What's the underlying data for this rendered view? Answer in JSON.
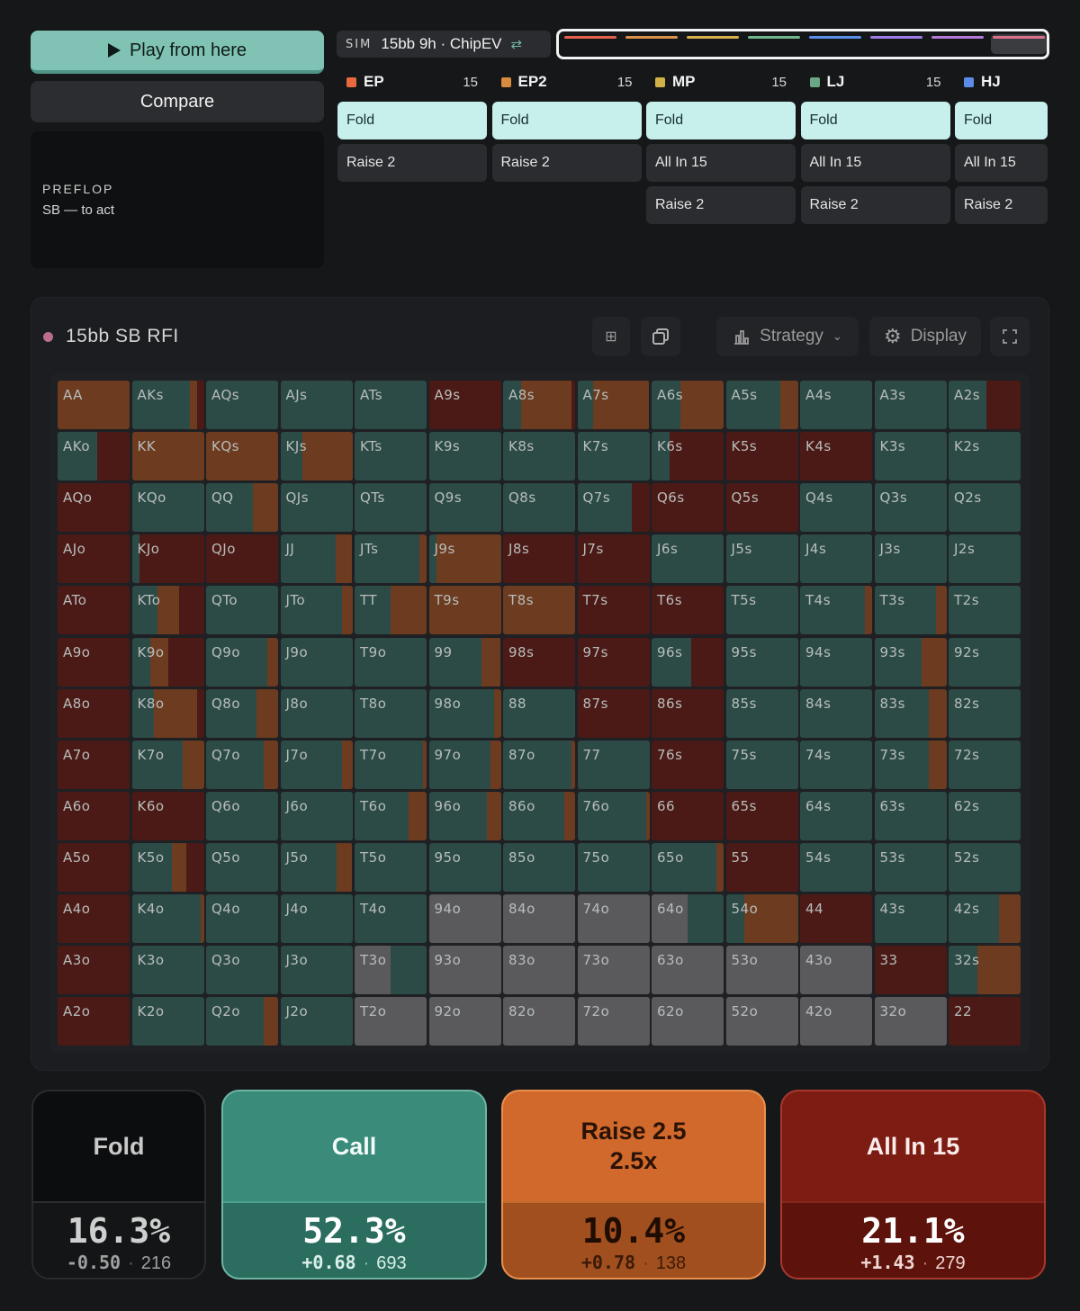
{
  "left": {
    "play_label": "Play from here",
    "compare_label": "Compare",
    "street": "PREFLOP",
    "to_act": "SB — to act"
  },
  "sim": {
    "tag": "SIM",
    "label": "15bb 9h · ChipEV",
    "swap_icon": "swap-icon"
  },
  "scrubber": {
    "colors": [
      "#e4614d",
      "#d9914b",
      "#d6b04c",
      "#6fb58d",
      "#5a8ee8",
      "#9d7be6",
      "#b47ad8",
      "#d9708c"
    ]
  },
  "positions": [
    {
      "name": "EP",
      "stack": "15",
      "color": "#e8683f",
      "actions": [
        "Fold",
        "Raise 2"
      ],
      "selected": 0
    },
    {
      "name": "EP2",
      "stack": "15",
      "color": "#d98b3e",
      "actions": [
        "Fold",
        "Raise 2"
      ],
      "selected": 0
    },
    {
      "name": "MP",
      "stack": "15",
      "color": "#d3b047",
      "actions": [
        "Fold",
        "All In 15",
        "Raise 2"
      ],
      "selected": 0
    },
    {
      "name": "LJ",
      "stack": "15",
      "color": "#6aa787",
      "actions": [
        "Fold",
        "All In 15",
        "Raise 2"
      ],
      "selected": 0
    },
    {
      "name": "HJ",
      "stack": "",
      "color": "#5d8ce8",
      "actions": [
        "Fold",
        "All In 15",
        "Raise 2"
      ],
      "selected": 0
    }
  ],
  "panel": {
    "title": "15bb SB RFI",
    "strategy_label": "Strategy",
    "display_label": "Display"
  },
  "colors": {
    "fold": "#5a5a5c",
    "call": "#2c4b47",
    "raise": "#6c3b20",
    "allin": "#4b1a16"
  },
  "hands": [
    [
      "AA",
      "AKs",
      "AQs",
      "AJs",
      "ATs",
      "A9s",
      "A8s",
      "A7s",
      "A6s",
      "A5s",
      "A4s",
      "A3s",
      "A2s"
    ],
    [
      "AKo",
      "KK",
      "KQs",
      "KJs",
      "KTs",
      "K9s",
      "K8s",
      "K7s",
      "K6s",
      "K5s",
      "K4s",
      "K3s",
      "K2s"
    ],
    [
      "AQo",
      "KQo",
      "QQ",
      "QJs",
      "QTs",
      "Q9s",
      "Q8s",
      "Q7s",
      "Q6s",
      "Q5s",
      "Q4s",
      "Q3s",
      "Q2s"
    ],
    [
      "AJo",
      "KJo",
      "QJo",
      "JJ",
      "JTs",
      "J9s",
      "J8s",
      "J7s",
      "J6s",
      "J5s",
      "J4s",
      "J3s",
      "J2s"
    ],
    [
      "ATo",
      "KTo",
      "QTo",
      "JTo",
      "TT",
      "T9s",
      "T8s",
      "T7s",
      "T6s",
      "T5s",
      "T4s",
      "T3s",
      "T2s"
    ],
    [
      "A9o",
      "K9o",
      "Q9o",
      "J9o",
      "T9o",
      "99",
      "98s",
      "97s",
      "96s",
      "95s",
      "94s",
      "93s",
      "92s"
    ],
    [
      "A8o",
      "K8o",
      "Q8o",
      "J8o",
      "T8o",
      "98o",
      "88",
      "87s",
      "86s",
      "85s",
      "84s",
      "83s",
      "82s"
    ],
    [
      "A7o",
      "K7o",
      "Q7o",
      "J7o",
      "T7o",
      "97o",
      "87o",
      "77",
      "76s",
      "75s",
      "74s",
      "73s",
      "72s"
    ],
    [
      "A6o",
      "K6o",
      "Q6o",
      "J6o",
      "T6o",
      "96o",
      "86o",
      "76o",
      "66",
      "65s",
      "64s",
      "63s",
      "62s"
    ],
    [
      "A5o",
      "K5o",
      "Q5o",
      "J5o",
      "T5o",
      "95o",
      "85o",
      "75o",
      "65o",
      "55",
      "54s",
      "53s",
      "52s"
    ],
    [
      "A4o",
      "K4o",
      "Q4o",
      "J4o",
      "T4o",
      "94o",
      "84o",
      "74o",
      "64o",
      "54o",
      "44",
      "43s",
      "42s"
    ],
    [
      "A3o",
      "K3o",
      "Q3o",
      "J3o",
      "T3o",
      "93o",
      "83o",
      "73o",
      "63o",
      "53o",
      "43o",
      "33",
      "32s"
    ],
    [
      "A2o",
      "K2o",
      "Q2o",
      "J2o",
      "T2o",
      "92o",
      "82o",
      "72o",
      "62o",
      "52o",
      "42o",
      "32o",
      "22"
    ]
  ],
  "strategy": [
    [
      [
        0,
        0,
        100,
        0
      ],
      [
        0,
        80,
        10,
        10
      ],
      [
        0,
        100,
        0,
        0
      ],
      [
        0,
        100,
        0,
        0
      ],
      [
        0,
        100,
        0,
        0
      ],
      [
        0,
        0,
        0,
        100
      ],
      [
        0,
        25,
        70,
        5
      ],
      [
        0,
        22,
        78,
        0
      ],
      [
        0,
        40,
        60,
        0
      ],
      [
        0,
        75,
        25,
        0
      ],
      [
        0,
        100,
        0,
        0
      ],
      [
        0,
        100,
        0,
        0
      ],
      [
        0,
        52,
        0,
        48
      ]
    ],
    [
      [
        0,
        55,
        0,
        45
      ],
      [
        0,
        0,
        100,
        0
      ],
      [
        0,
        0,
        100,
        0
      ],
      [
        0,
        30,
        70,
        0
      ],
      [
        0,
        100,
        0,
        0
      ],
      [
        0,
        100,
        0,
        0
      ],
      [
        0,
        100,
        0,
        0
      ],
      [
        0,
        100,
        0,
        0
      ],
      [
        0,
        25,
        0,
        75
      ],
      [
        0,
        0,
        0,
        100
      ],
      [
        0,
        0,
        0,
        100
      ],
      [
        0,
        100,
        0,
        0
      ],
      [
        0,
        100,
        0,
        0
      ]
    ],
    [
      [
        0,
        0,
        0,
        100
      ],
      [
        0,
        100,
        0,
        0
      ],
      [
        0,
        65,
        35,
        0
      ],
      [
        0,
        100,
        0,
        0
      ],
      [
        0,
        100,
        0,
        0
      ],
      [
        0,
        100,
        0,
        0
      ],
      [
        0,
        100,
        0,
        0
      ],
      [
        0,
        75,
        0,
        25
      ],
      [
        0,
        0,
        0,
        100
      ],
      [
        0,
        0,
        0,
        100
      ],
      [
        0,
        100,
        0,
        0
      ],
      [
        0,
        100,
        0,
        0
      ],
      [
        0,
        100,
        0,
        0
      ]
    ],
    [
      [
        0,
        0,
        0,
        100
      ],
      [
        0,
        10,
        0,
        90
      ],
      [
        0,
        0,
        0,
        100
      ],
      [
        0,
        77,
        23,
        0
      ],
      [
        0,
        90,
        10,
        0
      ],
      [
        0,
        10,
        90,
        0
      ],
      [
        0,
        0,
        0,
        100
      ],
      [
        0,
        0,
        0,
        100
      ],
      [
        0,
        100,
        0,
        0
      ],
      [
        0,
        100,
        0,
        0
      ],
      [
        0,
        100,
        0,
        0
      ],
      [
        0,
        100,
        0,
        0
      ],
      [
        0,
        100,
        0,
        0
      ]
    ],
    [
      [
        0,
        0,
        0,
        100
      ],
      [
        0,
        35,
        30,
        35
      ],
      [
        0,
        100,
        0,
        0
      ],
      [
        0,
        85,
        15,
        0
      ],
      [
        0,
        50,
        50,
        0
      ],
      [
        0,
        0,
        100,
        0
      ],
      [
        0,
        0,
        100,
        0
      ],
      [
        0,
        0,
        0,
        100
      ],
      [
        0,
        0,
        0,
        100
      ],
      [
        0,
        100,
        0,
        0
      ],
      [
        0,
        90,
        10,
        0
      ],
      [
        0,
        85,
        15,
        0
      ],
      [
        0,
        100,
        0,
        0
      ]
    ],
    [
      [
        0,
        0,
        0,
        100
      ],
      [
        0,
        25,
        25,
        50
      ],
      [
        0,
        85,
        15,
        0
      ],
      [
        0,
        100,
        0,
        0
      ],
      [
        0,
        100,
        0,
        0
      ],
      [
        0,
        73,
        27,
        0
      ],
      [
        0,
        0,
        0,
        100
      ],
      [
        0,
        0,
        0,
        100
      ],
      [
        0,
        55,
        0,
        45
      ],
      [
        0,
        100,
        0,
        0
      ],
      [
        0,
        100,
        0,
        0
      ],
      [
        0,
        65,
        35,
        0
      ],
      [
        0,
        100,
        0,
        0
      ]
    ],
    [
      [
        0,
        0,
        0,
        100
      ],
      [
        0,
        30,
        60,
        10
      ],
      [
        0,
        70,
        30,
        0
      ],
      [
        0,
        100,
        0,
        0
      ],
      [
        0,
        100,
        0,
        0
      ],
      [
        0,
        90,
        10,
        0
      ],
      [
        0,
        100,
        0,
        0
      ],
      [
        0,
        0,
        0,
        100
      ],
      [
        0,
        0,
        0,
        100
      ],
      [
        0,
        100,
        0,
        0
      ],
      [
        0,
        100,
        0,
        0
      ],
      [
        0,
        75,
        25,
        0
      ],
      [
        0,
        100,
        0,
        0
      ]
    ],
    [
      [
        0,
        0,
        0,
        100
      ],
      [
        0,
        70,
        30,
        0
      ],
      [
        0,
        80,
        20,
        0
      ],
      [
        0,
        85,
        15,
        0
      ],
      [
        0,
        95,
        5,
        0
      ],
      [
        0,
        85,
        15,
        0
      ],
      [
        0,
        95,
        5,
        0
      ],
      [
        0,
        100,
        0,
        0
      ],
      [
        0,
        0,
        0,
        100
      ],
      [
        0,
        100,
        0,
        0
      ],
      [
        0,
        100,
        0,
        0
      ],
      [
        0,
        75,
        25,
        0
      ],
      [
        0,
        100,
        0,
        0
      ]
    ],
    [
      [
        0,
        0,
        0,
        100
      ],
      [
        0,
        0,
        0,
        100
      ],
      [
        0,
        100,
        0,
        0
      ],
      [
        0,
        100,
        0,
        0
      ],
      [
        0,
        75,
        25,
        0
      ],
      [
        0,
        80,
        20,
        0
      ],
      [
        0,
        85,
        15,
        0
      ],
      [
        0,
        95,
        5,
        0
      ],
      [
        0,
        0,
        0,
        100
      ],
      [
        0,
        0,
        0,
        100
      ],
      [
        0,
        100,
        0,
        0
      ],
      [
        0,
        100,
        0,
        0
      ],
      [
        0,
        100,
        0,
        0
      ]
    ],
    [
      [
        0,
        0,
        0,
        100
      ],
      [
        0,
        55,
        20,
        25
      ],
      [
        0,
        100,
        0,
        0
      ],
      [
        0,
        78,
        22,
        0
      ],
      [
        0,
        100,
        0,
        0
      ],
      [
        0,
        100,
        0,
        0
      ],
      [
        0,
        100,
        0,
        0
      ],
      [
        0,
        100,
        0,
        0
      ],
      [
        0,
        90,
        10,
        0
      ],
      [
        0,
        0,
        0,
        100
      ],
      [
        0,
        100,
        0,
        0
      ],
      [
        0,
        100,
        0,
        0
      ],
      [
        0,
        100,
        0,
        0
      ]
    ],
    [
      [
        0,
        0,
        0,
        100
      ],
      [
        0,
        95,
        5,
        0
      ],
      [
        0,
        100,
        0,
        0
      ],
      [
        0,
        100,
        0,
        0
      ],
      [
        0,
        100,
        0,
        0
      ],
      [
        100,
        0,
        0,
        0
      ],
      [
        100,
        0,
        0,
        0
      ],
      [
        100,
        0,
        0,
        0
      ],
      [
        50,
        50,
        0,
        0
      ],
      [
        0,
        25,
        75,
        0
      ],
      [
        0,
        0,
        0,
        100
      ],
      [
        0,
        100,
        0,
        0
      ],
      [
        0,
        70,
        30,
        0
      ]
    ],
    [
      [
        0,
        0,
        0,
        100
      ],
      [
        0,
        100,
        0,
        0
      ],
      [
        0,
        100,
        0,
        0
      ],
      [
        0,
        100,
        0,
        0
      ],
      [
        50,
        50,
        0,
        0
      ],
      [
        100,
        0,
        0,
        0
      ],
      [
        100,
        0,
        0,
        0
      ],
      [
        100,
        0,
        0,
        0
      ],
      [
        100,
        0,
        0,
        0
      ],
      [
        100,
        0,
        0,
        0
      ],
      [
        100,
        0,
        0,
        0
      ],
      [
        0,
        0,
        0,
        100
      ],
      [
        0,
        40,
        60,
        0
      ]
    ],
    [
      [
        0,
        0,
        0,
        100
      ],
      [
        0,
        100,
        0,
        0
      ],
      [
        0,
        80,
        20,
        0
      ],
      [
        0,
        100,
        0,
        0
      ],
      [
        100,
        0,
        0,
        0
      ],
      [
        100,
        0,
        0,
        0
      ],
      [
        100,
        0,
        0,
        0
      ],
      [
        100,
        0,
        0,
        0
      ],
      [
        100,
        0,
        0,
        0
      ],
      [
        100,
        0,
        0,
        0
      ],
      [
        100,
        0,
        0,
        0
      ],
      [
        100,
        0,
        0,
        0
      ],
      [
        0,
        0,
        0,
        100
      ]
    ]
  ],
  "summary": [
    {
      "action": "Fold",
      "pct": "16.3%",
      "ev": "-0.50",
      "combos": "216"
    },
    {
      "action": "Call",
      "pct": "52.3%",
      "ev": "+0.68",
      "combos": "693"
    },
    {
      "action": "Raise 2.5\n2.5x",
      "pct": "10.4%",
      "ev": "+0.78",
      "combos": "138"
    },
    {
      "action": "All In 15",
      "pct": "21.1%",
      "ev": "+1.43",
      "combos": "279"
    }
  ]
}
